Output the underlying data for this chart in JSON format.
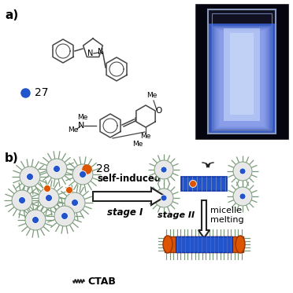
{
  "bg_color": "#ffffff",
  "label_a": "a)",
  "label_b": "b)",
  "blue": "#2255cc",
  "orange": "#dd5500",
  "label_27": "27",
  "label_28": "28",
  "dark": "#222222",
  "spike_color": "#7a9a7a",
  "text_self_induced": "self-induced",
  "text_stage1": "stage I",
  "text_stage2": "stage II",
  "text_micelle1": "micelle",
  "text_micelle2": "melting",
  "text_ctab": "CTAB",
  "photo_bg": "#000000"
}
